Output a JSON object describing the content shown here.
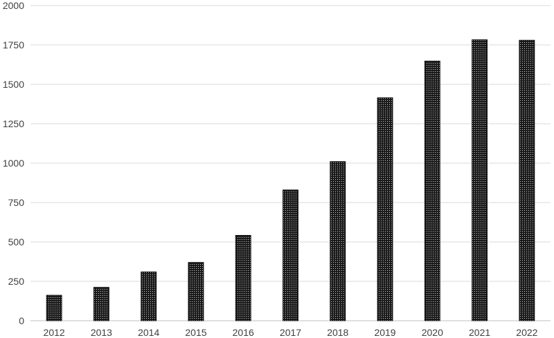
{
  "chart_data": {
    "type": "bar",
    "categories": [
      "2012",
      "2013",
      "2014",
      "2015",
      "2016",
      "2017",
      "2018",
      "2019",
      "2020",
      "2021",
      "2022"
    ],
    "values": [
      162,
      212,
      310,
      370,
      542,
      830,
      1010,
      1415,
      1648,
      1783,
      1780
    ],
    "title": "",
    "xlabel": "",
    "ylabel": "",
    "ylim": [
      0,
      2000
    ],
    "yticks": [
      0,
      250,
      500,
      750,
      1000,
      1250,
      1500,
      1750,
      2000
    ],
    "grid": true,
    "legend": "none",
    "bar_color": "#000000",
    "bar_pattern": "dotted",
    "grid_color": "#d9d9d9"
  }
}
